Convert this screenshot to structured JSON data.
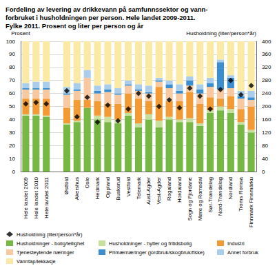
{
  "chart_data": {
    "type": "bar",
    "title": "Fordeling av levering av drikkevann på samfunnssektor og vann-\nforbruket i husholdningen per person. Hele landet 2009-2011.\nFylke 2011. Prosent og liter per person og år",
    "y_label": "Prosent",
    "y2_label": "Husholdning (liter/person*år)",
    "stacked": true,
    "grid": true,
    "legend": "bottom",
    "categories": [
      "Hele landet 2009",
      "Hele landet 2010",
      "Hele landet 2011",
      null,
      "Østfold",
      "Akershus",
      "Oslo",
      "Hedmark",
      "Oppland",
      "Buskerud",
      "Vestfold",
      "Telemark",
      "Aust-Agder",
      "Vest-Agder",
      "Rogaland",
      "Hordaland",
      "Sogn og Fjordane",
      "Møre og Romsdal",
      "Sør-Trøndelag",
      "Nord-Trøndelag",
      "Nordland",
      "Troms Romsa",
      "Finnmark Finnmárku"
    ],
    "ylim": [
      0,
      100
    ],
    "yticks": [
      0,
      10,
      20,
      30,
      40,
      50,
      60,
      70,
      80,
      90,
      100
    ],
    "y2lim": [
      0,
      400
    ],
    "y2ticks": [
      0,
      40,
      80,
      120,
      160,
      200,
      240,
      280,
      320,
      360,
      400
    ],
    "series": [
      {
        "name": "Husholdning (liter/person*år)",
        "type": "scatter",
        "marker": "diamond",
        "axis": "y2",
        "color": "#000000",
        "values": [
          208,
          212,
          208,
          null,
          248,
          168,
          228,
          152,
          204,
          156,
          192,
          240,
          232,
          200,
          220,
          196,
          256,
          232,
          192,
          252,
          280,
          236,
          264
        ]
      },
      {
        "name": "Husholdninger - bolig/leilighet",
        "type": "bar",
        "color": "#76b843",
        "values": [
          43,
          43,
          42,
          null,
          36,
          38,
          49,
          40,
          38,
          37,
          43,
          34,
          40,
          34,
          40,
          38,
          38,
          35,
          45,
          47,
          45,
          36,
          30
        ]
      },
      {
        "name": "Husholdninger - hytter og fritidsbolig",
        "type": "bar",
        "color": "#c6e09c",
        "values": [
          1,
          1,
          1,
          null,
          1,
          1,
          0,
          3,
          4,
          3,
          2,
          3,
          4,
          5,
          2,
          2,
          3,
          2,
          2,
          3,
          3,
          2,
          2
        ]
      },
      {
        "name": "Industri",
        "type": "bar",
        "color": "#f29a33",
        "values": [
          12,
          12,
          13,
          null,
          12,
          16,
          6,
          11,
          10,
          12,
          15,
          19,
          10,
          26,
          12,
          14,
          20,
          15,
          10,
          6,
          10,
          10,
          18
        ]
      },
      {
        "name": "Tjenesteytende næringer",
        "type": "bar",
        "color": "#f8c8a0",
        "values": [
          7,
          7,
          7,
          null,
          10,
          7,
          17,
          6,
          9,
          7,
          6,
          6,
          6,
          4,
          10,
          6,
          5,
          8,
          8,
          7,
          6,
          8,
          5
        ]
      },
      {
        "name": "Primærnæringer (jordbruk/skogbruk/fiske)",
        "type": "bar",
        "color": "#3b8fd1",
        "values": [
          1,
          1,
          1,
          null,
          1,
          1,
          0,
          2,
          2,
          1,
          1,
          1,
          1,
          1,
          3,
          2,
          4,
          3,
          3,
          21,
          8,
          2,
          2
        ]
      },
      {
        "name": "Annet forbruk",
        "type": "bar",
        "color": "#a9cdea",
        "values": [
          4,
          5,
          5,
          null,
          5,
          5,
          6,
          4,
          4,
          4,
          3,
          4,
          5,
          2,
          3,
          5,
          3,
          4,
          4,
          2,
          2,
          4,
          5
        ]
      },
      {
        "name": "Vanntap/lekkasje",
        "type": "bar",
        "color": "#fbeaa6",
        "values": [
          32,
          31,
          31,
          null,
          35,
          32,
          22,
          34,
          33,
          36,
          30,
          33,
          34,
          28,
          30,
          33,
          27,
          33,
          28,
          14,
          26,
          38,
          38
        ]
      }
    ]
  }
}
